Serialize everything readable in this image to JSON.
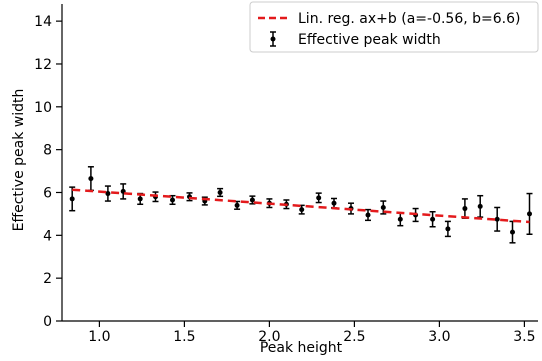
{
  "chart_data": {
    "type": "scatter",
    "xlabel": "Peak height",
    "ylabel": "Effective peak width",
    "xlim": [
      0.78,
      3.58
    ],
    "ylim": [
      0,
      14.8
    ],
    "x_ticks": [
      1.0,
      1.5,
      2.0,
      2.5,
      3.0,
      3.5
    ],
    "x_tick_labels": [
      "1.0",
      "1.5",
      "2.0",
      "2.5",
      "3.0",
      "3.5"
    ],
    "y_ticks": [
      0,
      2,
      4,
      6,
      8,
      10,
      12,
      14
    ],
    "y_tick_labels": [
      "0",
      "2",
      "4",
      "6",
      "8",
      "10",
      "12",
      "14"
    ],
    "grid": false,
    "legend_position": "top-right",
    "series": [
      {
        "name": "Effective peak width",
        "style": "errorbar",
        "color": "#000000",
        "x": [
          0.84,
          0.95,
          1.05,
          1.14,
          1.24,
          1.33,
          1.43,
          1.53,
          1.62,
          1.71,
          1.81,
          1.9,
          2.0,
          2.1,
          2.19,
          2.29,
          2.38,
          2.48,
          2.58,
          2.67,
          2.77,
          2.86,
          2.96,
          3.05,
          3.15,
          3.24,
          3.34,
          3.43,
          3.53
        ],
        "y": [
          5.7,
          6.65,
          5.95,
          6.05,
          5.7,
          5.8,
          5.65,
          5.8,
          5.6,
          6.0,
          5.4,
          5.65,
          5.5,
          5.45,
          5.2,
          5.75,
          5.5,
          5.25,
          4.95,
          5.3,
          4.75,
          4.95,
          4.75,
          4.3,
          5.25,
          5.35,
          4.75,
          4.15,
          5.0
        ],
        "yerr": [
          0.55,
          0.55,
          0.35,
          0.35,
          0.25,
          0.22,
          0.2,
          0.18,
          0.18,
          0.18,
          0.18,
          0.18,
          0.2,
          0.2,
          0.2,
          0.22,
          0.22,
          0.25,
          0.25,
          0.3,
          0.3,
          0.3,
          0.35,
          0.35,
          0.45,
          0.5,
          0.55,
          0.5,
          0.95
        ]
      },
      {
        "name": "Lin. reg. ax+b (a=-0.56, b=6.6)",
        "style": "dashed-line",
        "color": "#e31a1c",
        "slope": -0.56,
        "intercept": 6.6,
        "x": [
          0.84,
          3.53
        ]
      }
    ],
    "legend": [
      {
        "label": "Lin. reg. ax+b (a=-0.56, b=6.6)",
        "marker": "dashed-line",
        "color": "#e31a1c"
      },
      {
        "label": "Effective peak width",
        "marker": "errorbar",
        "color": "#000000"
      }
    ]
  }
}
